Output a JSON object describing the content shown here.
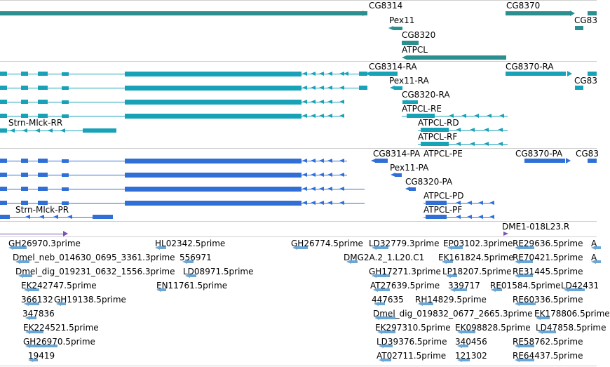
{
  "tracks": {
    "genes": {
      "color": "#2b8f8f",
      "labels": [
        "CG8314",
        "CG8370",
        "Pex11",
        "CG83",
        "CG8320",
        "ATPCL"
      ]
    },
    "transcripts_ra": {
      "color": "#17a2b8",
      "labels": [
        "CG8314-RA",
        "CG8370-RA",
        "Pex11-RA",
        "CG83",
        "CG8320-RA",
        "ATPCL-RE",
        "ATPCL-RD",
        "Strn-Mlck-RR",
        "ATPCL-RF"
      ]
    },
    "proteins": {
      "color": "#2f6fd6",
      "labels": [
        "CG8314-PA",
        "ATPCL-PE",
        "CG8370-PA",
        "CG83",
        "Pex11-PA",
        "CG8320-PA",
        "ATPCL-PD",
        "Strn-Mlck-PR",
        "ATPCL-PF"
      ]
    },
    "clone": {
      "color": "#7b52b0",
      "labels": [
        "DME1-018L23.R"
      ]
    },
    "ests": {
      "color": "#6aa6d6",
      "labels": [
        "GH26970.3prime",
        "HL02342.5prime",
        "GH26774.5prime",
        "LD32779.3prime",
        "EP03102.3prime",
        "RE29636.5prime",
        "A",
        "Dmel_neb_014630_0695_3361.3prime",
        "556971",
        "DMG2A.2_1.L20.C1",
        "EK161824.5prime",
        "RE70421.5prime",
        "A",
        "Dmel_dig_019231_0632_1556.3prime",
        "LD08971.5prime",
        "GH17271.3prime",
        "LP18207.5prime",
        "RE31445.5prime",
        "EK242747.5prime",
        "EN11761.5prime",
        "AT27639.5prime",
        "339717",
        "RE01584.5prime",
        "LD42431",
        "366132",
        "GH19138.5prime",
        "447635",
        "RH14829.5prime",
        "RE60336.5prime",
        "347836",
        "Dmel_dig_019832_0677_2665.3prime",
        "EK178806.5prime",
        "EK224521.5prime",
        "EK297310.5prime",
        "EK098828.5prime",
        "LD47858.5prime",
        "GH26970.5prime",
        "LD39376.5prime",
        "340456",
        "RE58762.5prime",
        "19419",
        "AT02711.5prime",
        "121302",
        "RE64437.5prime"
      ]
    }
  }
}
